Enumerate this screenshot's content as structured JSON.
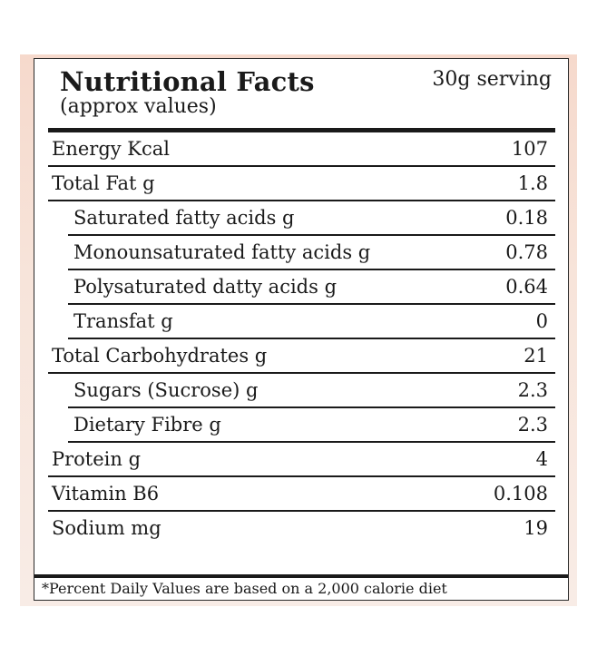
{
  "label": {
    "title": "Nutritional Facts",
    "serving": "30g serving",
    "subtitle": "(approx values)",
    "rows": [
      {
        "name": "Energy Kcal",
        "value": "107",
        "indent": false
      },
      {
        "name": "Total Fat g",
        "value": "1.8",
        "indent": false
      },
      {
        "name": "Saturated fatty acids g",
        "value": "0.18",
        "indent": true
      },
      {
        "name": "Monounsaturated fatty acids g",
        "value": "0.78",
        "indent": true
      },
      {
        "name": "Polysaturated datty acids g",
        "value": "0.64",
        "indent": true
      },
      {
        "name": "Transfat g",
        "value": "0",
        "indent": true
      },
      {
        "name": "Total Carbohydrates g",
        "value": "21",
        "indent": false
      },
      {
        "name": "Sugars (Sucrose) g",
        "value": "2.3",
        "indent": true
      },
      {
        "name": "Dietary Fibre g",
        "value": "2.3",
        "indent": true
      },
      {
        "name": "Protein g",
        "value": "4",
        "indent": false
      },
      {
        "name": "Vitamin B6",
        "value": "0.108",
        "indent": false
      },
      {
        "name": "Sodium mg",
        "value": "19",
        "indent": false
      }
    ],
    "footnote": "*Percent Daily Values are based on a 2,000 calorie diet"
  }
}
